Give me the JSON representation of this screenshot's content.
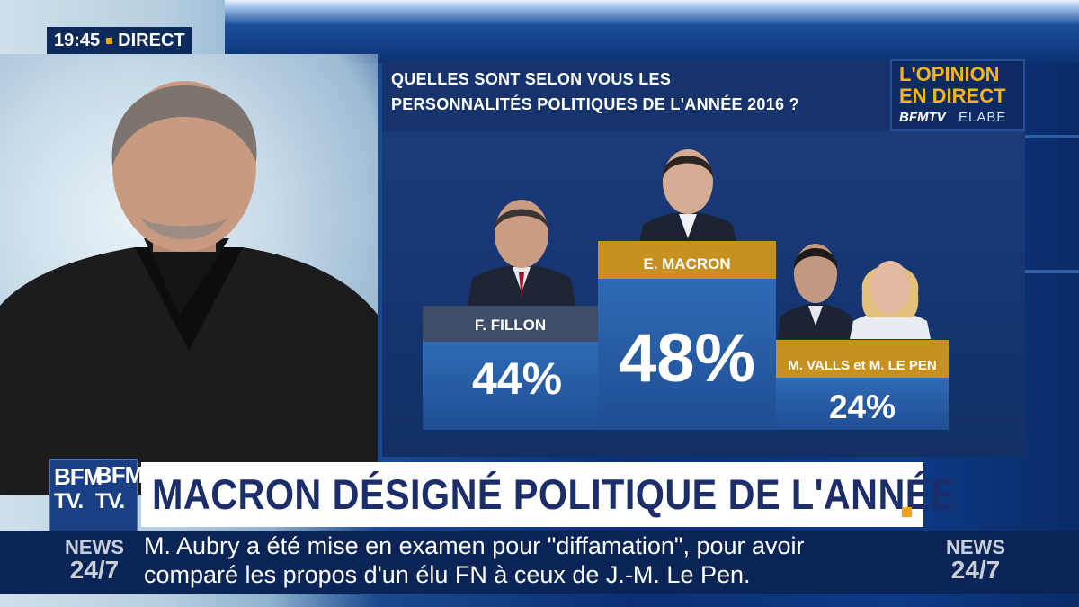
{
  "overlay": {
    "time": "19:45",
    "status": "DIRECT"
  },
  "poll": {
    "question_line1": "QUELLES SONT SELON VOUS LES",
    "question_line2": "PERSONNALITÉS POLITIQUES DE L'ANNÉE 2016 ?",
    "brand": {
      "line1": "L'OPINION",
      "line2": "EN DIRECT",
      "channel": "BFMTV",
      "partner": "ELABE"
    },
    "results": [
      {
        "name": "F. FILLON",
        "value": "44%"
      },
      {
        "name": "E. MACRON",
        "value": "48%"
      },
      {
        "name": "M. VALLS et M. LE PEN",
        "value": "24%"
      }
    ],
    "colors": {
      "gold": "#c8901f",
      "grey": "#3f4e68",
      "podium": "#2f6ab6"
    }
  },
  "headline": {
    "text": "MACRON DÉSIGNÉ POLITIQUE DE L'ANNÉE",
    "logo_line1": "BFM",
    "logo_line2": "TV.",
    "logo_line3": "BFM",
    "logo_line4": "TV."
  },
  "ticker": {
    "badge_line1": "NEWS",
    "badge_line2": "24/7",
    "line1": "M. Aubry a été mise en examen pour \"diffamation\", pour avoir",
    "line2": "comparé les propos d'un élu FN à ceux de J.-M. Le Pen."
  }
}
